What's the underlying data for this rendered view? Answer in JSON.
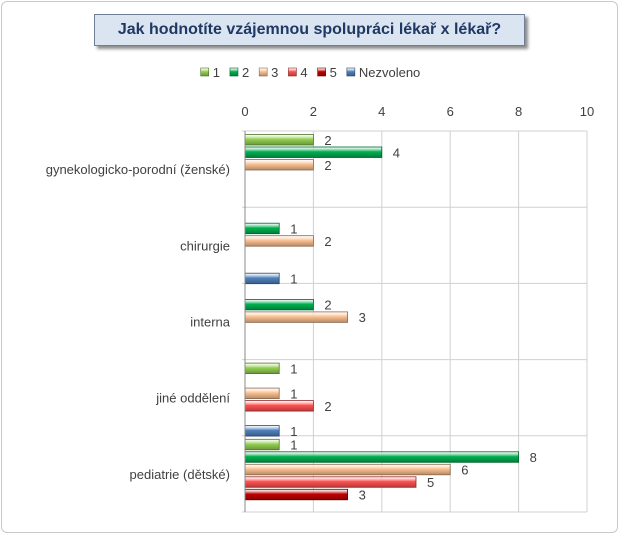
{
  "chart_data": {
    "type": "bar",
    "orientation": "horizontal",
    "title": "Jak hodnotíte vzájemnou spolupráci lékař x lékař?",
    "categories": [
      "gynekologicko-porodní (ženské)",
      "chirurgie",
      "interna",
      "jiné oddělení",
      "pediatrie (dětské)"
    ],
    "series": [
      {
        "name": "1",
        "color": "#92d050",
        "values": [
          2,
          null,
          null,
          1,
          1
        ]
      },
      {
        "name": "2",
        "color": "#00b050",
        "values": [
          4,
          1,
          2,
          null,
          8
        ]
      },
      {
        "name": "3",
        "color": "#fac090",
        "values": [
          2,
          2,
          3,
          1,
          6
        ]
      },
      {
        "name": "4",
        "color": "#ff5050",
        "values": [
          null,
          null,
          null,
          2,
          5
        ]
      },
      {
        "name": "5",
        "color": "#c00000",
        "values": [
          null,
          null,
          null,
          null,
          3
        ]
      },
      {
        "name": "Nezvoleno",
        "color": "#4f81bd",
        "values": [
          null,
          1,
          null,
          1,
          null
        ]
      }
    ],
    "xlim": [
      0,
      10
    ],
    "xticks": [
      0,
      2,
      4,
      6,
      8,
      10
    ],
    "grid": true,
    "legend_position": "top",
    "data_labels": true
  }
}
